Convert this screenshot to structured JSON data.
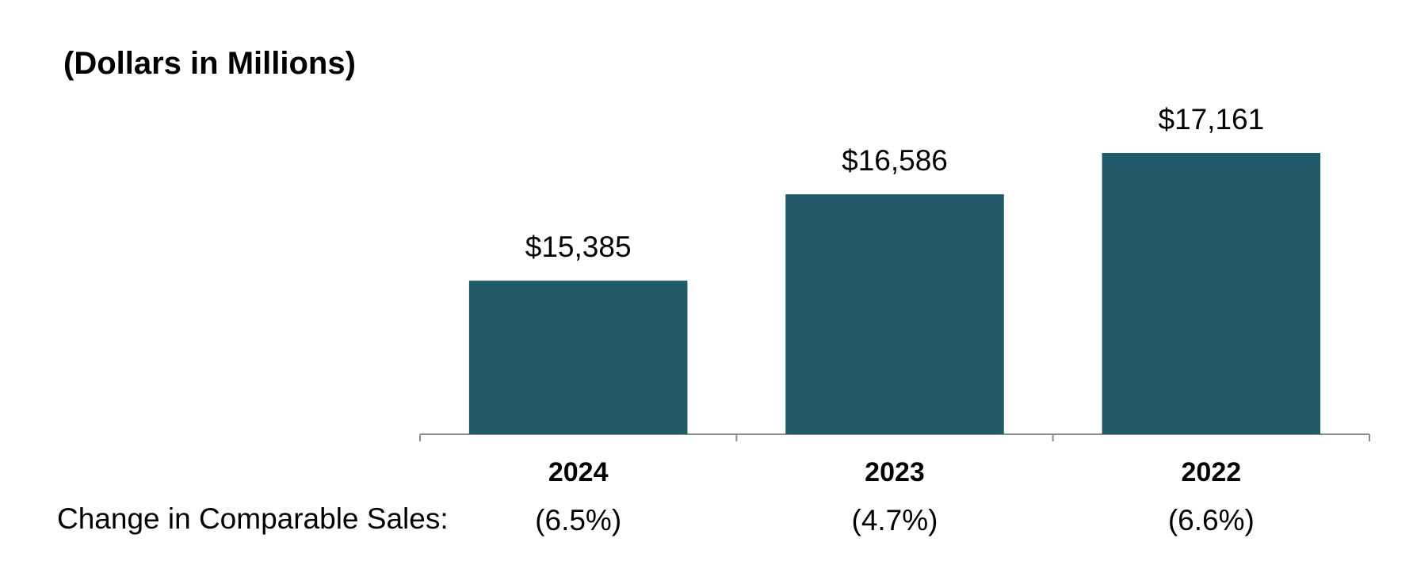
{
  "chart_data": {
    "type": "bar",
    "title": "(Dollars in Millions)",
    "categories": [
      "2024",
      "2023",
      "2022"
    ],
    "values": [
      15385,
      16586,
      17161
    ],
    "value_labels": [
      "$15,385",
      "$16,586",
      "$17,161"
    ],
    "xlabel": "",
    "ylabel": "",
    "ylim": [
      13250,
      17800
    ],
    "grid": false,
    "bar_color": "#225a6a",
    "axis_color": "#8c8c8c",
    "comparable_sales": {
      "label": "Change in Comparable Sales:",
      "values": [
        "(6.5%)",
        "(4.7%)",
        "(6.6%)"
      ]
    }
  }
}
